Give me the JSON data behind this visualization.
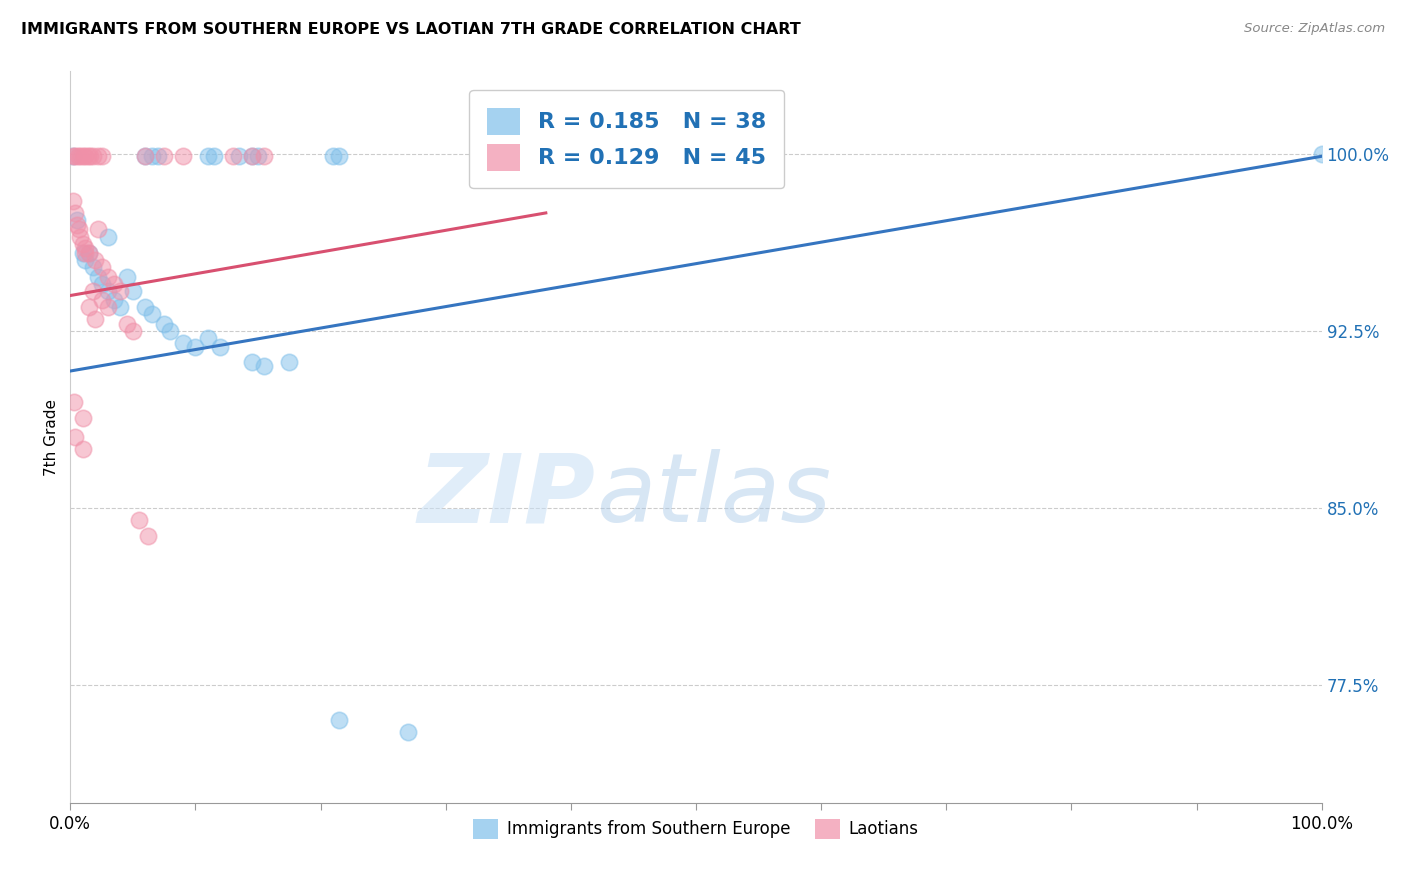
{
  "title": "IMMIGRANTS FROM SOUTHERN EUROPE VS LAOTIAN 7TH GRADE CORRELATION CHART",
  "source": "Source: ZipAtlas.com",
  "ylabel": "7th Grade",
  "y_ticks": [
    0.775,
    0.85,
    0.925,
    1.0
  ],
  "y_tick_labels": [
    "77.5%",
    "85.0%",
    "92.5%",
    "100.0%"
  ],
  "legend_blue_r": "R = 0.185",
  "legend_blue_n": "N = 38",
  "legend_pink_r": "R = 0.129",
  "legend_pink_n": "N = 45",
  "xlim": [
    0.0,
    1.0
  ],
  "ylim": [
    0.725,
    1.035
  ],
  "blue_color": "#7fbfea",
  "pink_color": "#f090a8",
  "blue_line_color": "#3575c0",
  "pink_line_color": "#d85070",
  "blue_scatter": [
    [
      0.002,
      0.999
    ],
    [
      0.06,
      0.999
    ],
    [
      0.065,
      0.999
    ],
    [
      0.07,
      0.999
    ],
    [
      0.11,
      0.999
    ],
    [
      0.115,
      0.999
    ],
    [
      0.135,
      0.999
    ],
    [
      0.145,
      0.999
    ],
    [
      0.15,
      0.999
    ],
    [
      0.21,
      0.999
    ],
    [
      0.215,
      0.999
    ],
    [
      0.005,
      0.972
    ],
    [
      0.03,
      0.965
    ],
    [
      0.01,
      0.958
    ],
    [
      0.012,
      0.955
    ],
    [
      0.015,
      0.958
    ],
    [
      0.018,
      0.952
    ],
    [
      0.022,
      0.948
    ],
    [
      0.025,
      0.945
    ],
    [
      0.03,
      0.942
    ],
    [
      0.035,
      0.938
    ],
    [
      0.04,
      0.935
    ],
    [
      0.045,
      0.948
    ],
    [
      0.05,
      0.942
    ],
    [
      0.06,
      0.935
    ],
    [
      0.065,
      0.932
    ],
    [
      0.075,
      0.928
    ],
    [
      0.08,
      0.925
    ],
    [
      0.09,
      0.92
    ],
    [
      0.1,
      0.918
    ],
    [
      0.11,
      0.922
    ],
    [
      0.12,
      0.918
    ],
    [
      0.145,
      0.912
    ],
    [
      0.155,
      0.91
    ],
    [
      0.175,
      0.912
    ],
    [
      0.215,
      0.76
    ],
    [
      0.27,
      0.755
    ],
    [
      1.0,
      1.0
    ]
  ],
  "pink_scatter": [
    [
      0.002,
      0.999
    ],
    [
      0.004,
      0.999
    ],
    [
      0.006,
      0.999
    ],
    [
      0.008,
      0.999
    ],
    [
      0.01,
      0.999
    ],
    [
      0.012,
      0.999
    ],
    [
      0.014,
      0.999
    ],
    [
      0.016,
      0.999
    ],
    [
      0.018,
      0.999
    ],
    [
      0.022,
      0.999
    ],
    [
      0.025,
      0.999
    ],
    [
      0.06,
      0.999
    ],
    [
      0.075,
      0.999
    ],
    [
      0.09,
      0.999
    ],
    [
      0.13,
      0.999
    ],
    [
      0.145,
      0.999
    ],
    [
      0.155,
      0.999
    ],
    [
      0.002,
      0.98
    ],
    [
      0.004,
      0.975
    ],
    [
      0.005,
      0.97
    ],
    [
      0.007,
      0.968
    ],
    [
      0.008,
      0.965
    ],
    [
      0.01,
      0.962
    ],
    [
      0.012,
      0.96
    ],
    [
      0.015,
      0.958
    ],
    [
      0.02,
      0.955
    ],
    [
      0.025,
      0.952
    ],
    [
      0.03,
      0.948
    ],
    [
      0.035,
      0.945
    ],
    [
      0.04,
      0.942
    ],
    [
      0.015,
      0.935
    ],
    [
      0.02,
      0.93
    ],
    [
      0.003,
      0.895
    ],
    [
      0.01,
      0.888
    ],
    [
      0.004,
      0.88
    ],
    [
      0.01,
      0.875
    ],
    [
      0.055,
      0.845
    ],
    [
      0.062,
      0.838
    ],
    [
      0.012,
      0.958
    ],
    [
      0.018,
      0.942
    ],
    [
      0.025,
      0.938
    ],
    [
      0.03,
      0.935
    ],
    [
      0.045,
      0.928
    ],
    [
      0.05,
      0.925
    ],
    [
      0.022,
      0.968
    ]
  ],
  "watermark_zip": "ZIP",
  "watermark_atlas": "atlas",
  "blue_trend_x": [
    0.0,
    1.0
  ],
  "blue_trend_y": [
    0.908,
    0.999
  ],
  "pink_trend_x": [
    0.0,
    0.38
  ],
  "pink_trend_y": [
    0.94,
    0.975
  ]
}
